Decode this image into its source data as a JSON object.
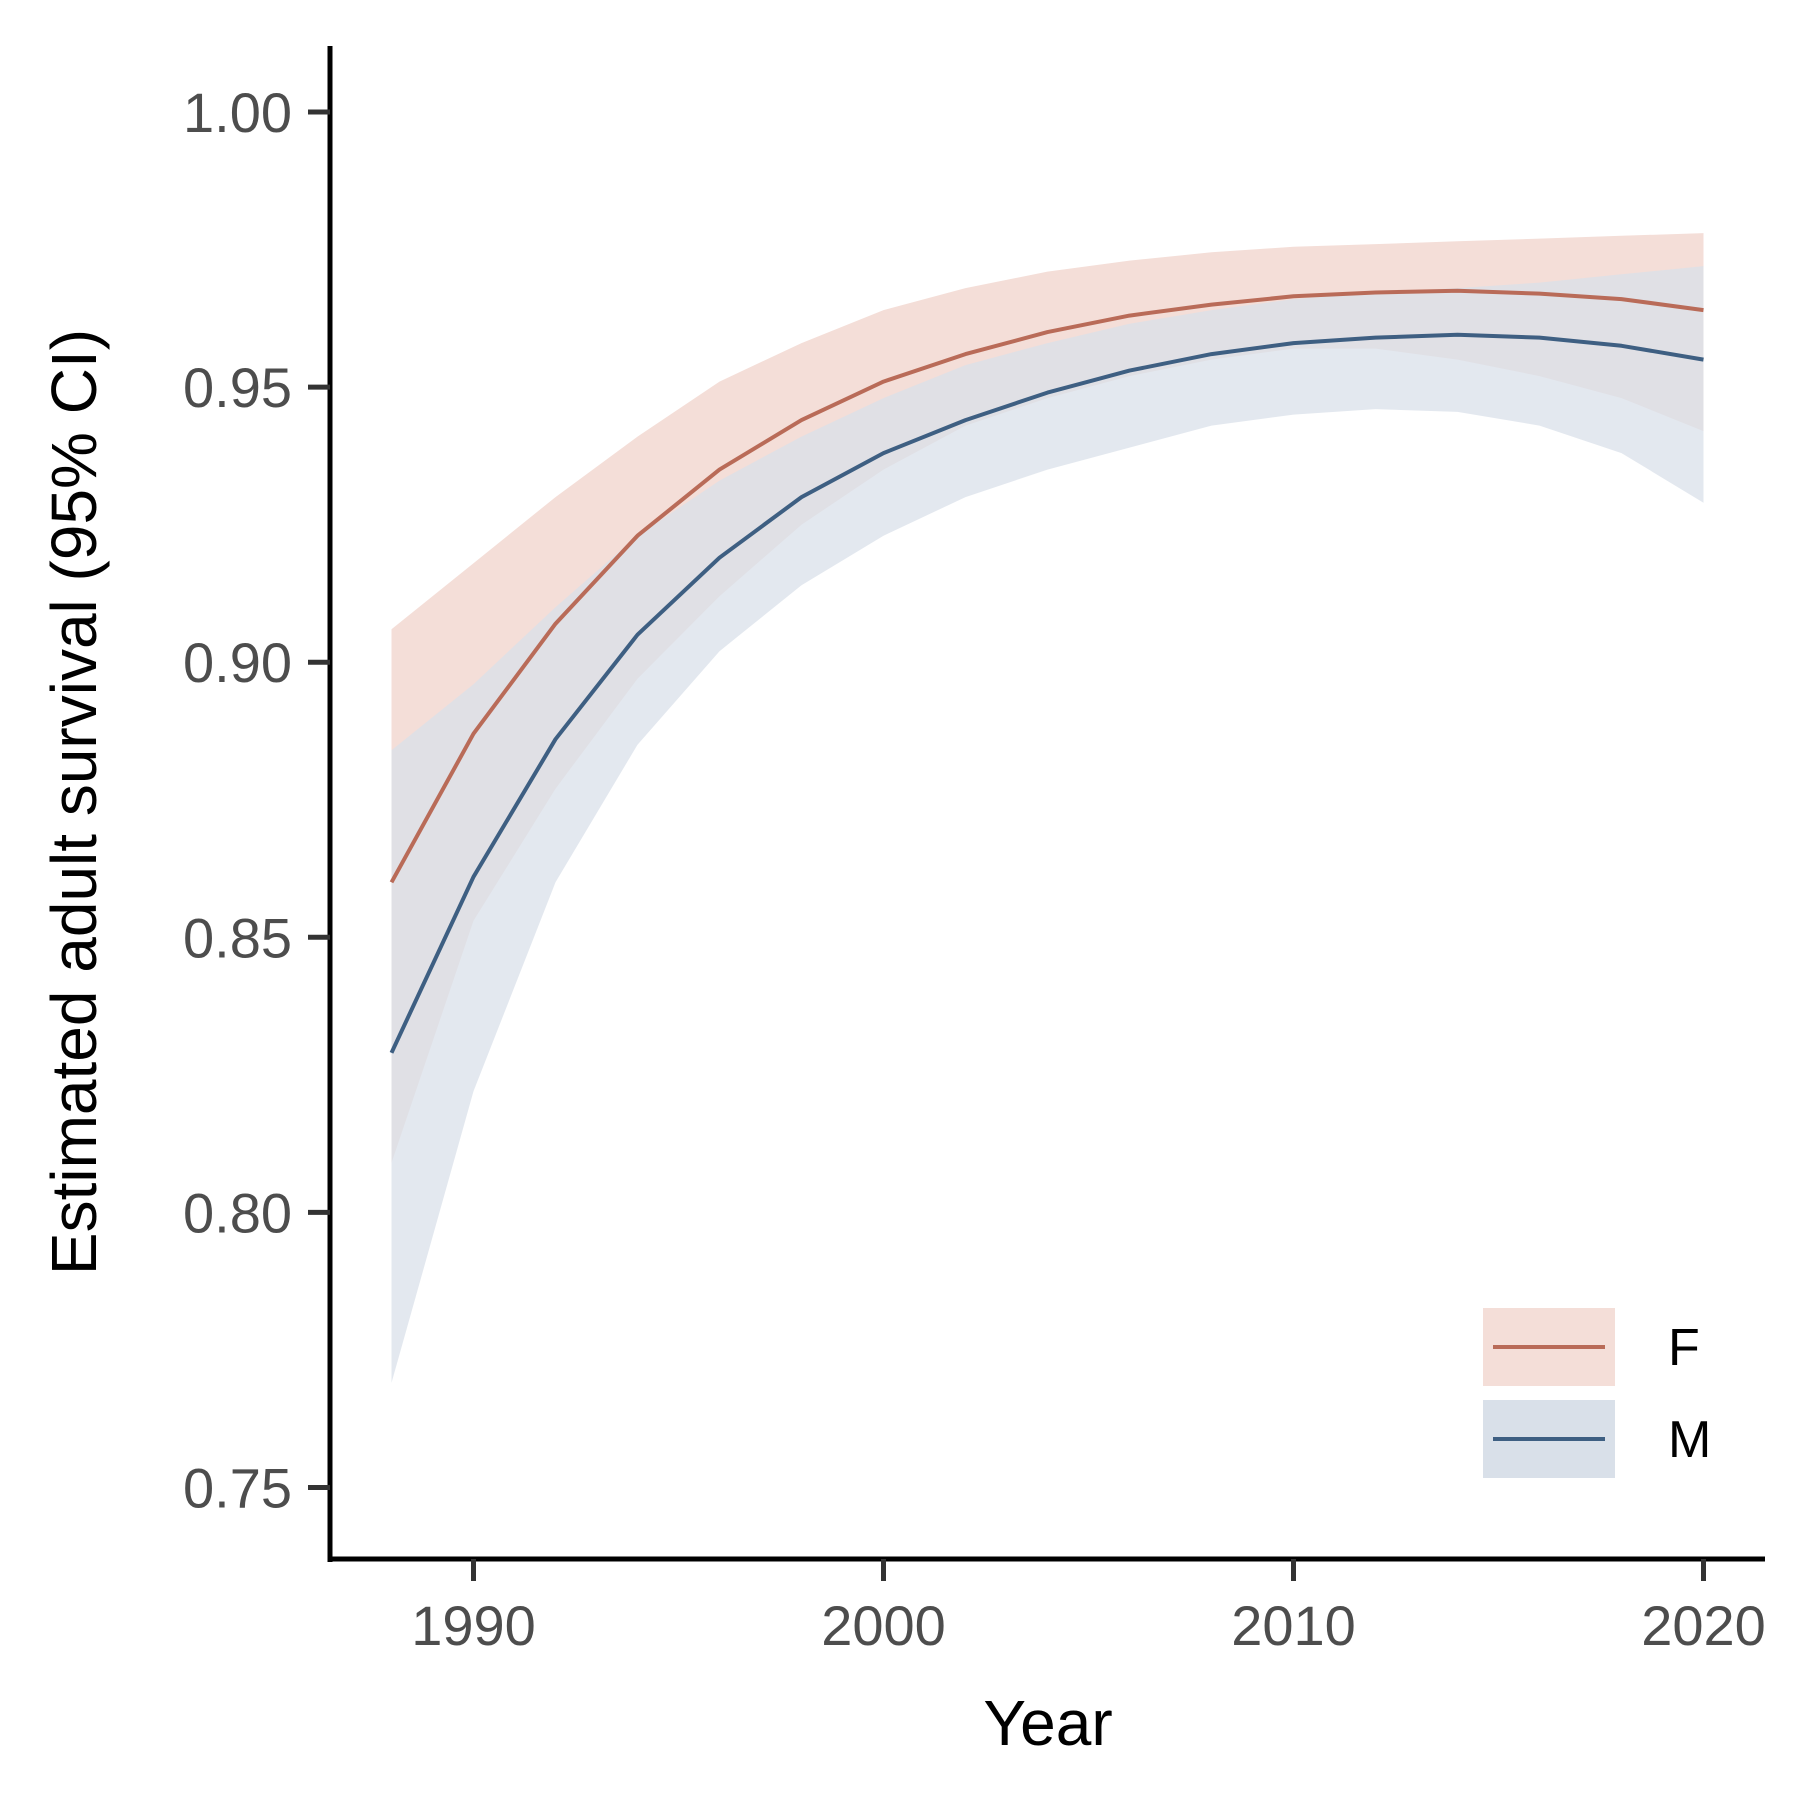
{
  "chart_data": {
    "type": "line",
    "xlabel": "Year",
    "ylabel": "Estimated adult survival (95% CI)",
    "xlim": [
      1986.5,
      2021.5
    ],
    "ylim": [
      0.737,
      1.012
    ],
    "xticks": [
      1990,
      2000,
      2010,
      2020
    ],
    "yticks": [
      0.75,
      0.8,
      0.85,
      0.9,
      0.95,
      1.0
    ],
    "xtick_labels": [
      "1990",
      "2000",
      "2010",
      "2020"
    ],
    "ytick_labels": [
      "0.75",
      "0.80",
      "0.85",
      "0.90",
      "0.95",
      "1.00"
    ],
    "legend_position": "bottom-right",
    "grid": false,
    "x": [
      1988,
      1990,
      1992,
      1994,
      1996,
      1998,
      2000,
      2002,
      2004,
      2006,
      2008,
      2010,
      2012,
      2014,
      2016,
      2018,
      2020
    ],
    "series": [
      {
        "name": "F",
        "line_color": "#B96B58",
        "ribbon_color": "#F4DED8",
        "values": [
          0.86,
          0.887,
          0.907,
          0.923,
          0.935,
          0.944,
          0.951,
          0.956,
          0.96,
          0.963,
          0.965,
          0.9665,
          0.9672,
          0.9675,
          0.967,
          0.966,
          0.964
        ],
        "lower": [
          0.809,
          0.853,
          0.877,
          0.897,
          0.912,
          0.925,
          0.935,
          0.943,
          0.948,
          0.952,
          0.955,
          0.957,
          0.957,
          0.955,
          0.952,
          0.948,
          0.942
        ],
        "upper": [
          0.906,
          0.918,
          0.93,
          0.941,
          0.951,
          0.958,
          0.964,
          0.968,
          0.971,
          0.973,
          0.9745,
          0.9755,
          0.976,
          0.9765,
          0.977,
          0.9775,
          0.978
        ]
      },
      {
        "name": "M",
        "line_color": "#3E5F82",
        "ribbon_color": "#D9E0E9",
        "values": [
          0.829,
          0.861,
          0.886,
          0.905,
          0.919,
          0.93,
          0.938,
          0.944,
          0.949,
          0.953,
          0.956,
          0.958,
          0.959,
          0.9595,
          0.959,
          0.9575,
          0.955
        ],
        "lower": [
          0.769,
          0.822,
          0.86,
          0.885,
          0.902,
          0.914,
          0.923,
          0.93,
          0.935,
          0.939,
          0.943,
          0.945,
          0.946,
          0.9455,
          0.943,
          0.938,
          0.929
        ],
        "upper": [
          0.884,
          0.896,
          0.91,
          0.923,
          0.933,
          0.941,
          0.948,
          0.954,
          0.958,
          0.9615,
          0.964,
          0.966,
          0.9672,
          0.968,
          0.969,
          0.9705,
          0.972
        ]
      }
    ]
  }
}
